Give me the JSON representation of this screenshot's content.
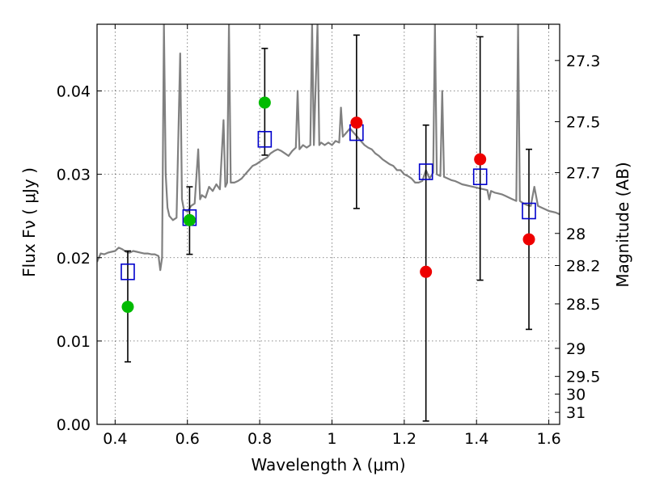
{
  "chart_data": {
    "type": "scatter",
    "xlabel": "Wavelength  λ (μm)",
    "ylabel": "Flux  Fν  ( μJy )",
    "ylabel_right": "Magnitude (AB)",
    "xlim": [
      0.35,
      1.63
    ],
    "ylim": [
      0.0,
      0.048
    ],
    "x_ticks": [
      {
        "value": 0.4,
        "label": "0.4"
      },
      {
        "value": 0.6,
        "label": "0.6"
      },
      {
        "value": 0.8,
        "label": "0.8"
      },
      {
        "value": 1.0,
        "label": "1"
      },
      {
        "value": 1.2,
        "label": "1.2"
      },
      {
        "value": 1.4,
        "label": "1.4"
      },
      {
        "value": 1.6,
        "label": "1.6"
      }
    ],
    "y_ticks": [
      {
        "value": 0.0,
        "label": "0.00"
      },
      {
        "value": 0.01,
        "label": "0.01"
      },
      {
        "value": 0.02,
        "label": "0.02"
      },
      {
        "value": 0.03,
        "label": "0.03"
      },
      {
        "value": 0.04,
        "label": "0.04"
      }
    ],
    "magnitude_ticks": [
      {
        "value": 27.3,
        "label": "27.3"
      },
      {
        "value": 27.5,
        "label": "27.5"
      },
      {
        "value": 27.7,
        "label": "27.7"
      },
      {
        "value": 28.0,
        "label": "28"
      },
      {
        "value": 28.2,
        "label": "28.2"
      },
      {
        "value": 28.5,
        "label": "28.5"
      },
      {
        "value": 29.0,
        "label": "29"
      },
      {
        "value": 29.5,
        "label": "29.5"
      },
      {
        "value": 30.0,
        "label": "30"
      },
      {
        "value": 31.0,
        "label": "31"
      }
    ],
    "grid": true,
    "colors": {
      "model": "#808080",
      "model_points": "#0000cc",
      "observed_green": "#00bb00",
      "observed_red": "#ee0000",
      "error_bars": "#000000"
    },
    "model_spectrum": [
      [
        0.35,
        0.0195
      ],
      [
        0.36,
        0.0205
      ],
      [
        0.37,
        0.0204
      ],
      [
        0.38,
        0.0206
      ],
      [
        0.39,
        0.0207
      ],
      [
        0.4,
        0.0208
      ],
      [
        0.41,
        0.0212
      ],
      [
        0.42,
        0.021
      ],
      [
        0.43,
        0.0207
      ],
      [
        0.44,
        0.0206
      ],
      [
        0.45,
        0.0208
      ],
      [
        0.46,
        0.0207
      ],
      [
        0.47,
        0.0206
      ],
      [
        0.48,
        0.0205
      ],
      [
        0.49,
        0.0205
      ],
      [
        0.5,
        0.0204
      ],
      [
        0.51,
        0.0204
      ],
      [
        0.52,
        0.0202
      ],
      [
        0.525,
        0.0185
      ],
      [
        0.53,
        0.02
      ],
      [
        0.535,
        0.048
      ],
      [
        0.54,
        0.03
      ],
      [
        0.545,
        0.026
      ],
      [
        0.55,
        0.025
      ],
      [
        0.56,
        0.0245
      ],
      [
        0.57,
        0.0248
      ],
      [
        0.58,
        0.0445
      ],
      [
        0.585,
        0.027
      ],
      [
        0.59,
        0.0258
      ],
      [
        0.6,
        0.0255
      ],
      [
        0.61,
        0.0262
      ],
      [
        0.62,
        0.0265
      ],
      [
        0.63,
        0.033
      ],
      [
        0.635,
        0.027
      ],
      [
        0.64,
        0.0275
      ],
      [
        0.65,
        0.0272
      ],
      [
        0.66,
        0.0285
      ],
      [
        0.67,
        0.028
      ],
      [
        0.68,
        0.0288
      ],
      [
        0.69,
        0.0282
      ],
      [
        0.7,
        0.0365
      ],
      [
        0.705,
        0.0285
      ],
      [
        0.71,
        0.029
      ],
      [
        0.715,
        0.048
      ],
      [
        0.72,
        0.029
      ],
      [
        0.73,
        0.029
      ],
      [
        0.74,
        0.0292
      ],
      [
        0.75,
        0.0295
      ],
      [
        0.76,
        0.03
      ],
      [
        0.77,
        0.0305
      ],
      [
        0.78,
        0.031
      ],
      [
        0.79,
        0.0312
      ],
      [
        0.8,
        0.0315
      ],
      [
        0.81,
        0.0318
      ],
      [
        0.82,
        0.032
      ],
      [
        0.83,
        0.0325
      ],
      [
        0.84,
        0.0328
      ],
      [
        0.85,
        0.033
      ],
      [
        0.86,
        0.0328
      ],
      [
        0.87,
        0.0325
      ],
      [
        0.88,
        0.0322
      ],
      [
        0.89,
        0.0328
      ],
      [
        0.9,
        0.0332
      ],
      [
        0.905,
        0.04
      ],
      [
        0.91,
        0.033
      ],
      [
        0.92,
        0.0335
      ],
      [
        0.93,
        0.0332
      ],
      [
        0.94,
        0.0335
      ],
      [
        0.945,
        0.048
      ],
      [
        0.95,
        0.0335
      ],
      [
        0.96,
        0.048
      ],
      [
        0.965,
        0.0335
      ],
      [
        0.97,
        0.0338
      ],
      [
        0.98,
        0.0335
      ],
      [
        0.99,
        0.0338
      ],
      [
        1.0,
        0.0335
      ],
      [
        1.01,
        0.034
      ],
      [
        1.02,
        0.0338
      ],
      [
        1.025,
        0.038
      ],
      [
        1.03,
        0.0345
      ],
      [
        1.04,
        0.035
      ],
      [
        1.05,
        0.0355
      ],
      [
        1.06,
        0.035
      ],
      [
        1.07,
        0.0345
      ],
      [
        1.08,
        0.034
      ],
      [
        1.09,
        0.0335
      ],
      [
        1.1,
        0.0332
      ],
      [
        1.11,
        0.033
      ],
      [
        1.12,
        0.0325
      ],
      [
        1.13,
        0.0322
      ],
      [
        1.14,
        0.0318
      ],
      [
        1.15,
        0.0315
      ],
      [
        1.16,
        0.0312
      ],
      [
        1.17,
        0.031
      ],
      [
        1.18,
        0.0305
      ],
      [
        1.19,
        0.0305
      ],
      [
        1.2,
        0.03
      ],
      [
        1.21,
        0.0298
      ],
      [
        1.22,
        0.0295
      ],
      [
        1.23,
        0.029
      ],
      [
        1.24,
        0.029
      ],
      [
        1.25,
        0.0292
      ],
      [
        1.26,
        0.0305
      ],
      [
        1.27,
        0.0295
      ],
      [
        1.28,
        0.0302
      ],
      [
        1.285,
        0.048
      ],
      [
        1.29,
        0.03
      ],
      [
        1.3,
        0.0298
      ],
      [
        1.305,
        0.04
      ],
      [
        1.31,
        0.0297
      ],
      [
        1.32,
        0.0295
      ],
      [
        1.33,
        0.0293
      ],
      [
        1.34,
        0.0292
      ],
      [
        1.35,
        0.029
      ],
      [
        1.36,
        0.0288
      ],
      [
        1.37,
        0.0287
      ],
      [
        1.38,
        0.0286
      ],
      [
        1.39,
        0.0285
      ],
      [
        1.4,
        0.0284
      ],
      [
        1.41,
        0.0283
      ],
      [
        1.42,
        0.0282
      ],
      [
        1.43,
        0.0281
      ],
      [
        1.435,
        0.027
      ],
      [
        1.44,
        0.028
      ],
      [
        1.45,
        0.0278
      ],
      [
        1.46,
        0.0277
      ],
      [
        1.47,
        0.0276
      ],
      [
        1.48,
        0.0274
      ],
      [
        1.49,
        0.0272
      ],
      [
        1.5,
        0.027
      ],
      [
        1.51,
        0.0268
      ],
      [
        1.515,
        0.048
      ],
      [
        1.52,
        0.0268
      ],
      [
        1.53,
        0.0265
      ],
      [
        1.54,
        0.0263
      ],
      [
        1.55,
        0.0262
      ],
      [
        1.56,
        0.0285
      ],
      [
        1.57,
        0.0262
      ],
      [
        1.58,
        0.026
      ],
      [
        1.59,
        0.0258
      ],
      [
        1.6,
        0.0256
      ],
      [
        1.61,
        0.0255
      ],
      [
        1.62,
        0.0254
      ],
      [
        1.63,
        0.0252
      ]
    ],
    "model_points": [
      {
        "x": 0.435,
        "y": 0.0183
      },
      {
        "x": 0.606,
        "y": 0.0248
      },
      {
        "x": 0.814,
        "y": 0.0342
      },
      {
        "x": 1.068,
        "y": 0.035
      },
      {
        "x": 1.26,
        "y": 0.0303
      },
      {
        "x": 1.41,
        "y": 0.0297
      },
      {
        "x": 1.545,
        "y": 0.0256
      }
    ],
    "observed": [
      {
        "x": 0.435,
        "y": 0.0141,
        "err_low": 0.0075,
        "err_high": 0.0208,
        "color": "green"
      },
      {
        "x": 0.606,
        "y": 0.0245,
        "err_low": 0.0204,
        "err_high": 0.0285,
        "color": "green"
      },
      {
        "x": 0.814,
        "y": 0.0386,
        "err_low": 0.0323,
        "err_high": 0.0451,
        "color": "green"
      },
      {
        "x": 1.068,
        "y": 0.0362,
        "err_low": 0.0259,
        "err_high": 0.0467,
        "color": "red"
      },
      {
        "x": 1.26,
        "y": 0.0183,
        "err_low": 0.0004,
        "err_high": 0.0359,
        "color": "red"
      },
      {
        "x": 1.41,
        "y": 0.0318,
        "err_low": 0.0173,
        "err_high": 0.0465,
        "color": "red"
      },
      {
        "x": 1.545,
        "y": 0.0222,
        "err_low": 0.0114,
        "err_high": 0.033,
        "color": "red"
      }
    ]
  }
}
